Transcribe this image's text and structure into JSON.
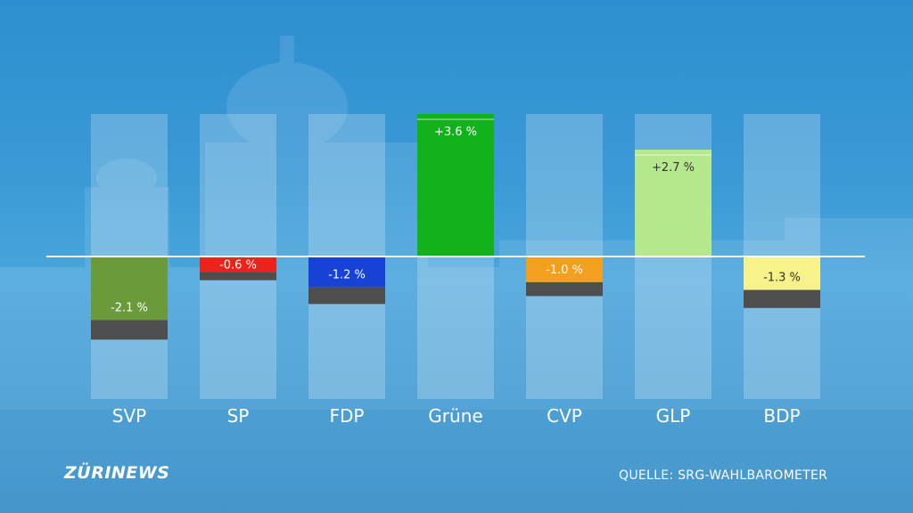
{
  "brand": {
    "logo": "ZÜRINEWS"
  },
  "source": "QUELLE: SRG-WAHLBAROMETER",
  "chart_data": {
    "type": "bar",
    "categories": [
      "SVP",
      "SP",
      "FDP",
      "Grüne",
      "CVP",
      "GLP",
      "BDP"
    ],
    "values": [
      -2.1,
      -0.6,
      -1.2,
      3.6,
      -1.0,
      2.7,
      -1.3
    ],
    "value_labels": [
      "-2.1 %",
      "-0.6 %",
      "-1.2 %",
      "+3.6 %",
      "-1.0 %",
      "+2.7 %",
      "-1.3 %"
    ],
    "colors": [
      "#6a9a3a",
      "#e8241c",
      "#1842d6",
      "#11b21c",
      "#f3a01e",
      "#b6e88e",
      "#f7f28a"
    ],
    "label_colors": [
      "#ffffff",
      "#ffffff",
      "#ffffff",
      "#ffffff",
      "#ffffff",
      "#333333",
      "#333333"
    ],
    "ylim": [
      -3.6,
      3.6
    ],
    "zero_line": true,
    "xlabel": "",
    "ylabel": ""
  }
}
